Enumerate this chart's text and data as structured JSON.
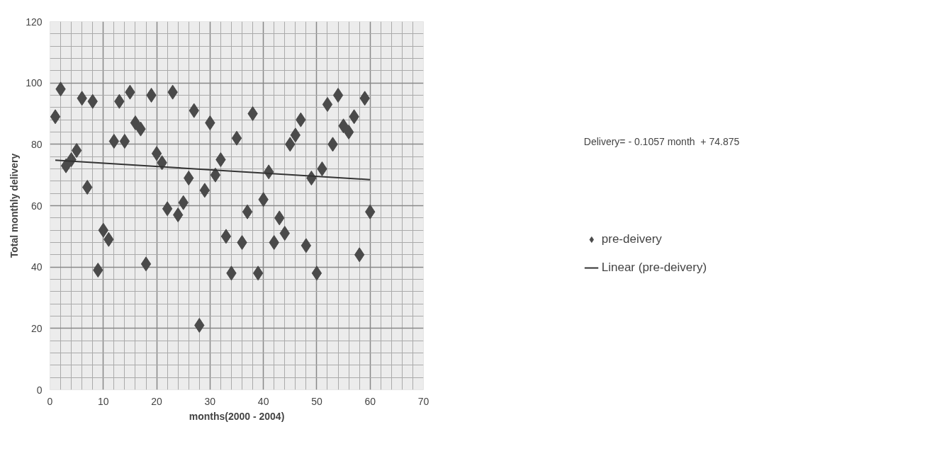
{
  "chart_data": {
    "type": "scatter",
    "xlabel": "months(2000 - 2004)",
    "ylabel": "Total monthly delivery",
    "xlim": [
      0,
      70
    ],
    "ylim": [
      0,
      120
    ],
    "xticks": [
      0,
      10,
      20,
      30,
      40,
      50,
      60,
      70
    ],
    "yticks": [
      0,
      20,
      40,
      60,
      80,
      100,
      120
    ],
    "grid": true,
    "legend": "right",
    "marker": "diamond",
    "annotations": [
      "Delivery= - 0.1057 month  + 74.875"
    ],
    "series": [
      {
        "name": "pre-deivery",
        "color": "#4a4a4a",
        "x": [
          1,
          2,
          3,
          4,
          5,
          6,
          7,
          8,
          9,
          10,
          11,
          12,
          13,
          14,
          15,
          16,
          17,
          18,
          19,
          20,
          21,
          22,
          23,
          24,
          25,
          26,
          27,
          28,
          29,
          30,
          31,
          32,
          33,
          34,
          35,
          36,
          37,
          38,
          39,
          40,
          41,
          42,
          43,
          44,
          45,
          46,
          47,
          48,
          49,
          50,
          51,
          52,
          53,
          54,
          55,
          56,
          57,
          58,
          59,
          60
        ],
        "values": [
          89,
          98,
          73,
          75,
          78,
          95,
          66,
          94,
          39,
          52,
          49,
          81,
          94,
          81,
          97,
          87,
          85,
          41,
          96,
          77,
          74,
          59,
          97,
          57,
          61,
          69,
          91,
          21,
          65,
          87,
          70,
          75,
          50,
          38,
          82,
          48,
          58,
          90,
          38,
          62,
          71,
          48,
          56,
          51,
          80,
          83,
          88,
          47,
          69,
          38,
          72,
          93,
          80,
          96,
          86,
          84,
          89,
          44,
          95,
          58
        ]
      },
      {
        "name": "Linear (pre-deivery)",
        "type": "line",
        "color": "#333333",
        "marker": "none",
        "x": [
          1,
          60
        ],
        "values": [
          74.8,
          68.5
        ]
      }
    ]
  }
}
